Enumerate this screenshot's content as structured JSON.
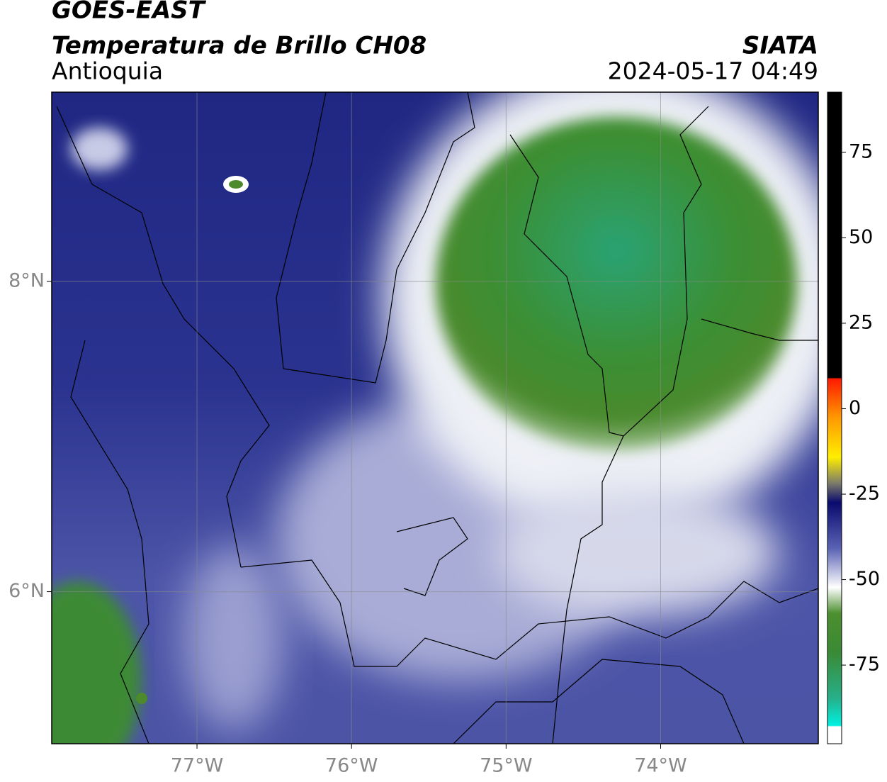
{
  "header": {
    "title": "GOES-EAST",
    "subtitle": "Temperatura de Brillo CH08",
    "region": "Antioquia",
    "source": "SIATA",
    "datetime": "2024-05-17 04:49"
  },
  "map": {
    "xlim": [
      -77.94,
      -72.98
    ],
    "ylim": [
      5.02,
      9.22
    ],
    "xticks": [
      {
        "value": -77,
        "label": "77°W"
      },
      {
        "value": -76,
        "label": "76°W"
      },
      {
        "value": -75,
        "label": "75°W"
      },
      {
        "value": -74,
        "label": "74°W"
      }
    ],
    "yticks": [
      {
        "value": 6,
        "label": "6°N"
      },
      {
        "value": 8,
        "label": "8°N"
      }
    ]
  },
  "colorbar": {
    "lim": [
      -98,
      92.6
    ],
    "ticks": [
      75,
      50,
      25,
      0,
      -25,
      -50,
      -75
    ]
  }
}
